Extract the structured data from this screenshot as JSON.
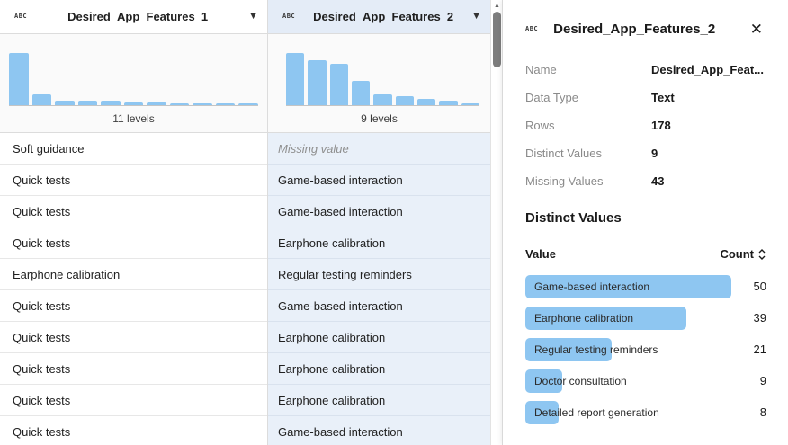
{
  "columns": [
    {
      "name": "Desired_App_Features_1",
      "type_icon": "ABC",
      "levels_label": "11 levels",
      "histogram": [
        100,
        20,
        8,
        8,
        8,
        5,
        5,
        3,
        2,
        2,
        2
      ],
      "selected": false
    },
    {
      "name": "Desired_App_Features_2",
      "type_icon": "ABC",
      "levels_label": "9 levels",
      "histogram": [
        100,
        86,
        79,
        46,
        21,
        18,
        12,
        9,
        4
      ],
      "selected": true
    }
  ],
  "rows": [
    {
      "c1": "Soft guidance",
      "c2": "Missing value",
      "c2_missing": true
    },
    {
      "c1": "Quick tests",
      "c2": "Game-based interaction",
      "c2_missing": false
    },
    {
      "c1": "Quick tests",
      "c2": "Game-based interaction",
      "c2_missing": false
    },
    {
      "c1": "Quick tests",
      "c2": "Earphone calibration",
      "c2_missing": false
    },
    {
      "c1": "Earphone calibration",
      "c2": "Regular testing reminders",
      "c2_missing": false
    },
    {
      "c1": "Quick tests",
      "c2": "Game-based interaction",
      "c2_missing": false
    },
    {
      "c1": "Quick tests",
      "c2": "Earphone calibration",
      "c2_missing": false
    },
    {
      "c1": "Quick tests",
      "c2": "Earphone calibration",
      "c2_missing": false
    },
    {
      "c1": "Quick tests",
      "c2": "Earphone calibration",
      "c2_missing": false
    },
    {
      "c1": "Quick tests",
      "c2": "Game-based interaction",
      "c2_missing": false
    }
  ],
  "panel": {
    "type_icon": "ABC",
    "title": "Desired_App_Features_2",
    "close_icon": "✕",
    "properties": [
      {
        "label": "Name",
        "value": "Desired_App_Feat..."
      },
      {
        "label": "Data Type",
        "value": "Text"
      },
      {
        "label": "Rows",
        "value": "178"
      },
      {
        "label": "Distinct Values",
        "value": "9"
      },
      {
        "label": "Missing Values",
        "value": "43"
      }
    ],
    "distinct_section": {
      "title": "Distinct Values",
      "value_header": "Value",
      "count_header": "Count",
      "max_count": 50,
      "items": [
        {
          "value": "Game-based interaction",
          "count": 50
        },
        {
          "value": "Earphone calibration",
          "count": 39
        },
        {
          "value": "Regular testing reminders",
          "count": 21
        },
        {
          "value": "Doctor consultation",
          "count": 9
        },
        {
          "value": "Detailed report generation",
          "count": 8
        }
      ]
    }
  },
  "colors": {
    "bar_blue": "#8ec6f1",
    "selected_header_bg": "#e4ecf7",
    "selected_cell_bg": "#e9f0f9"
  }
}
